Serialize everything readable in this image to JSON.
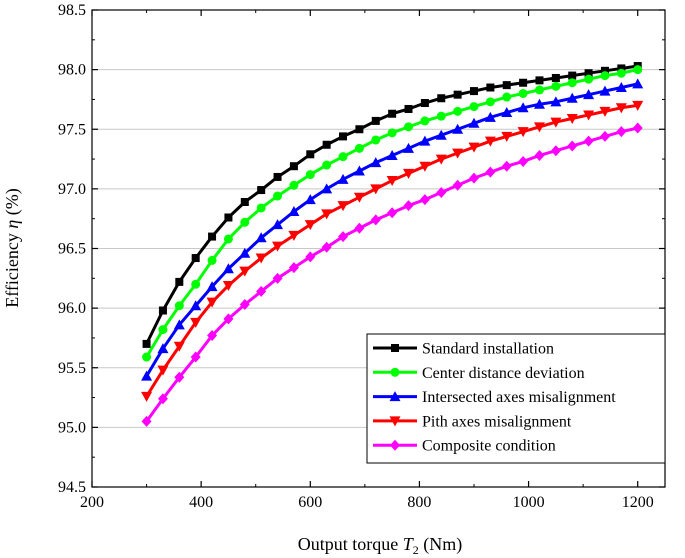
{
  "chart_data": {
    "type": "line",
    "xlabel": {
      "prefix": "Output torque ",
      "var": "T",
      "sub": "2",
      "suffix": " (Nm)"
    },
    "ylabel": {
      "prefix": "Efficiency ",
      "var": "η",
      "suffix": " (%)"
    },
    "xlim": [
      200,
      1250
    ],
    "ylim": [
      94.5,
      98.5
    ],
    "xticks": [
      "200",
      "400",
      "600",
      "800",
      "1000",
      "1200"
    ],
    "yticks": [
      "94.5",
      "95.0",
      "95.5",
      "96.0",
      "96.5",
      "97.0",
      "97.5",
      "98.0",
      "98.5"
    ],
    "grid": true,
    "legend_position": "bottom-right",
    "x": [
      300,
      330,
      360,
      390,
      420,
      450,
      480,
      510,
      540,
      570,
      600,
      630,
      660,
      690,
      720,
      750,
      780,
      810,
      840,
      870,
      900,
      930,
      960,
      990,
      1020,
      1050,
      1080,
      1110,
      1140,
      1170,
      1200
    ],
    "series": [
      {
        "name": "Standard installation",
        "color": "#000000",
        "marker": "square",
        "values": [
          95.7,
          95.98,
          96.22,
          96.42,
          96.6,
          96.76,
          96.89,
          96.99,
          97.1,
          97.19,
          97.29,
          97.37,
          97.44,
          97.5,
          97.57,
          97.63,
          97.67,
          97.72,
          97.76,
          97.79,
          97.82,
          97.85,
          97.87,
          97.89,
          97.91,
          97.93,
          97.95,
          97.97,
          97.99,
          98.01,
          98.03
        ]
      },
      {
        "name": "Center distance deviation",
        "color": "#00ff00",
        "marker": "circle",
        "values": [
          95.59,
          95.82,
          96.02,
          96.2,
          96.4,
          96.58,
          96.72,
          96.84,
          96.94,
          97.03,
          97.12,
          97.2,
          97.27,
          97.34,
          97.41,
          97.47,
          97.52,
          97.57,
          97.61,
          97.65,
          97.69,
          97.73,
          97.77,
          97.8,
          97.83,
          97.86,
          97.89,
          97.92,
          97.95,
          97.97,
          98.0
        ]
      },
      {
        "name": "Intersected axes misalignment",
        "color": "#0000ff",
        "marker": "triangle-up",
        "values": [
          95.43,
          95.66,
          95.86,
          96.02,
          96.18,
          96.33,
          96.46,
          96.59,
          96.7,
          96.81,
          96.91,
          97.0,
          97.08,
          97.15,
          97.22,
          97.28,
          97.34,
          97.4,
          97.45,
          97.5,
          97.55,
          97.6,
          97.64,
          97.68,
          97.71,
          97.73,
          97.76,
          97.79,
          97.82,
          97.85,
          97.88
        ]
      },
      {
        "name": "Pith axes misalignment",
        "color": "#ff0000",
        "marker": "triangle-down",
        "values": [
          95.26,
          95.48,
          95.68,
          95.88,
          96.05,
          96.19,
          96.31,
          96.42,
          96.52,
          96.61,
          96.7,
          96.79,
          96.86,
          96.93,
          97.0,
          97.07,
          97.13,
          97.19,
          97.25,
          97.3,
          97.35,
          97.4,
          97.44,
          97.48,
          97.52,
          97.56,
          97.59,
          97.62,
          97.65,
          97.68,
          97.7
        ]
      },
      {
        "name": "Composite condition",
        "color": "#ff00ff",
        "marker": "diamond",
        "values": [
          95.05,
          95.24,
          95.42,
          95.59,
          95.77,
          95.91,
          96.03,
          96.14,
          96.25,
          96.34,
          96.43,
          96.51,
          96.6,
          96.67,
          96.74,
          96.8,
          96.86,
          96.91,
          96.97,
          97.03,
          97.09,
          97.14,
          97.19,
          97.23,
          97.28,
          97.32,
          97.36,
          97.4,
          97.44,
          97.48,
          97.51
        ]
      }
    ]
  }
}
